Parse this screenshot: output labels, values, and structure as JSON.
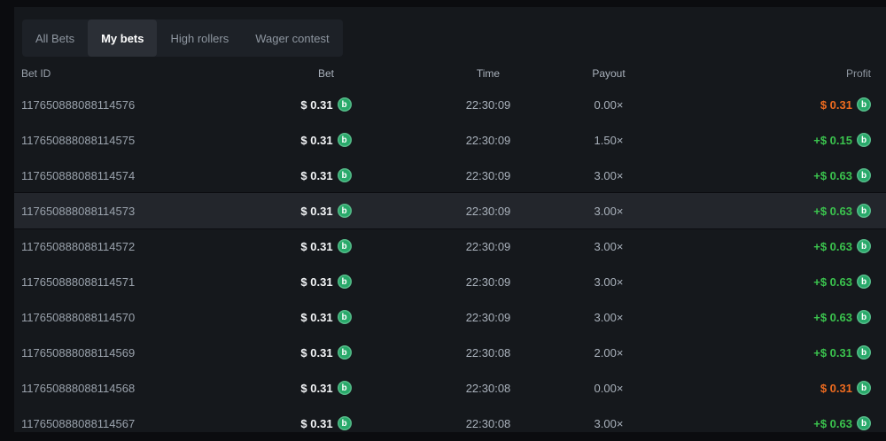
{
  "tabs": [
    {
      "label": "All Bets",
      "active": false
    },
    {
      "label": "My bets",
      "active": true
    },
    {
      "label": "High rollers",
      "active": false
    },
    {
      "label": "Wager contest",
      "active": false
    }
  ],
  "table": {
    "columns": [
      "Bet ID",
      "Bet",
      "Time",
      "Payout",
      "Profit"
    ],
    "rows": [
      {
        "bet_id": "117650888088114576",
        "bet": "$ 0.31",
        "time": "22:30:09",
        "payout": "0.00×",
        "profit": "$ 0.31",
        "profit_type": "loss",
        "highlighted": false
      },
      {
        "bet_id": "117650888088114575",
        "bet": "$ 0.31",
        "time": "22:30:09",
        "payout": "1.50×",
        "profit": "+$ 0.15",
        "profit_type": "win",
        "highlighted": false
      },
      {
        "bet_id": "117650888088114574",
        "bet": "$ 0.31",
        "time": "22:30:09",
        "payout": "3.00×",
        "profit": "+$ 0.63",
        "profit_type": "win",
        "highlighted": false
      },
      {
        "bet_id": "117650888088114573",
        "bet": "$ 0.31",
        "time": "22:30:09",
        "payout": "3.00×",
        "profit": "+$ 0.63",
        "profit_type": "win",
        "highlighted": true
      },
      {
        "bet_id": "117650888088114572",
        "bet": "$ 0.31",
        "time": "22:30:09",
        "payout": "3.00×",
        "profit": "+$ 0.63",
        "profit_type": "win",
        "highlighted": false
      },
      {
        "bet_id": "117650888088114571",
        "bet": "$ 0.31",
        "time": "22:30:09",
        "payout": "3.00×",
        "profit": "+$ 0.63",
        "profit_type": "win",
        "highlighted": false
      },
      {
        "bet_id": "117650888088114570",
        "bet": "$ 0.31",
        "time": "22:30:09",
        "payout": "3.00×",
        "profit": "+$ 0.63",
        "profit_type": "win",
        "highlighted": false
      },
      {
        "bet_id": "117650888088114569",
        "bet": "$ 0.31",
        "time": "22:30:08",
        "payout": "2.00×",
        "profit": "+$ 0.31",
        "profit_type": "win",
        "highlighted": false
      },
      {
        "bet_id": "117650888088114568",
        "bet": "$ 0.31",
        "time": "22:30:08",
        "payout": "0.00×",
        "profit": "$ 0.31",
        "profit_type": "loss",
        "highlighted": false
      },
      {
        "bet_id": "117650888088114567",
        "bet": "$ 0.31",
        "time": "22:30:08",
        "payout": "3.00×",
        "profit": "+$ 0.63",
        "profit_type": "win",
        "highlighted": false
      }
    ]
  },
  "icons": {
    "coin_glyph": "b"
  },
  "colors": {
    "outer_background": "#0b0c0f",
    "panel_background": "#15181c",
    "tabbar_background": "#1d2127",
    "tab_active_background": "#2b2f36",
    "row_highlight": "#23262c",
    "profit_green": "#3bc44e",
    "loss_orange": "#ee6b1f",
    "coin_green": "#28a96a",
    "text_dim": "#8e96a0",
    "text_id": "#9aa2ac",
    "text_value": "#a9b1bb"
  }
}
